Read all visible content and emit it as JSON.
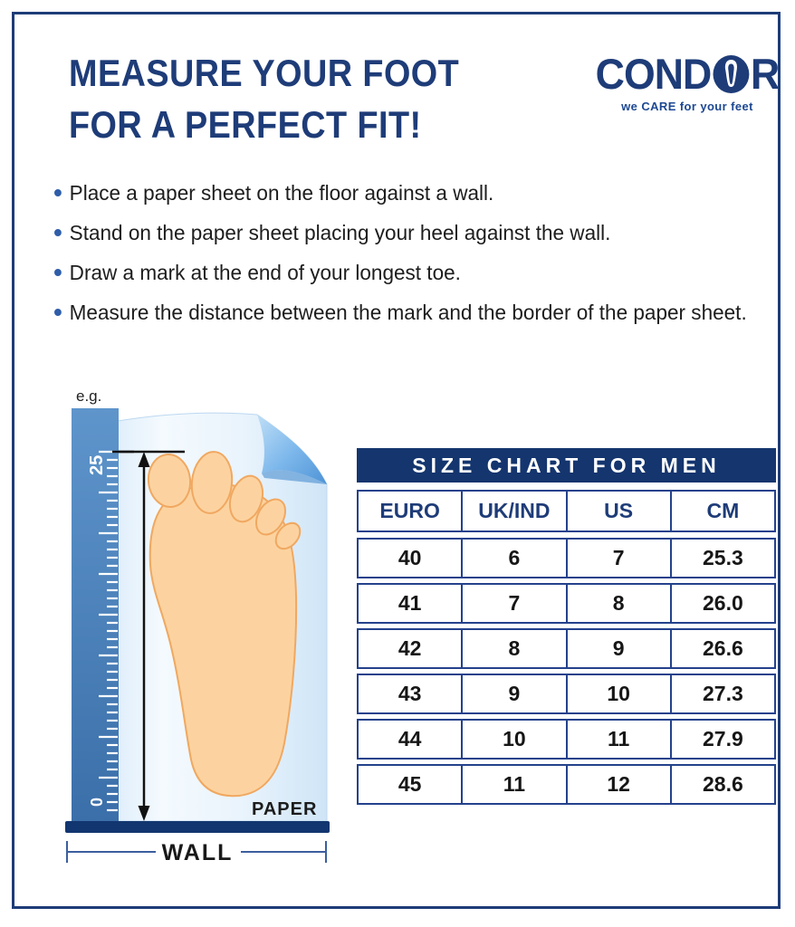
{
  "header": {
    "title_line1": "MEASURE YOUR FOOT",
    "title_line2": "FOR A PERFECT FIT!"
  },
  "logo": {
    "text_before": "COND",
    "text_after": "R",
    "tagline": "we CARE for your feet"
  },
  "instructions": [
    "Place a paper sheet on the floor against a wall.",
    "Stand on the paper sheet placing your heel against the wall.",
    "Draw a mark at the end of your longest toe.",
    "Measure the distance between the mark and the border of the paper sheet."
  ],
  "illustration": {
    "example_label": "e.g.",
    "ruler_top_value": "25",
    "ruler_bottom_value": "0",
    "paper_label": "PAPER",
    "wall_label": "WALL"
  },
  "size_chart": {
    "title": "SIZE CHART FOR MEN",
    "columns": [
      "EURO",
      "UK/IND",
      "US",
      "CM"
    ],
    "rows": [
      [
        "40",
        "6",
        "7",
        "25.3"
      ],
      [
        "41",
        "7",
        "8",
        "26.0"
      ],
      [
        "42",
        "8",
        "9",
        "26.6"
      ],
      [
        "43",
        "9",
        "10",
        "27.3"
      ],
      [
        "44",
        "10",
        "11",
        "27.9"
      ],
      [
        "45",
        "11",
        "12",
        "28.6"
      ]
    ]
  },
  "colors": {
    "navy": "#1e3c78",
    "band_bg": "#14356e",
    "border_blue": "#24418c",
    "ruler_blue": "#4a80ba",
    "foot_fill": "#fcd3a0",
    "foot_stroke": "#f0a861",
    "ink": "#1d1d1d",
    "bullet_blue": "#2e5da9",
    "wall_navy": "#12366f",
    "dim_line": "#3c5f9e",
    "logo_tag": "#1d4893"
  }
}
